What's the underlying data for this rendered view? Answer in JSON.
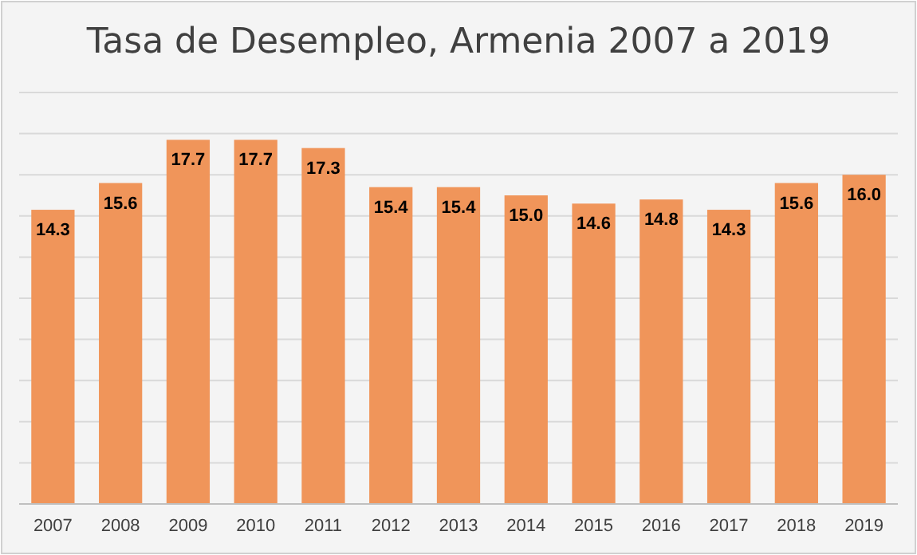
{
  "chart_data": {
    "type": "bar",
    "title": "Tasa de Desempleo, Armenia 2007 a 2019",
    "categories": [
      "2007",
      "2008",
      "2009",
      "2010",
      "2011",
      "2012",
      "2013",
      "2014",
      "2015",
      "2016",
      "2017",
      "2018",
      "2019"
    ],
    "values": [
      14.3,
      15.6,
      17.7,
      17.7,
      17.3,
      15.4,
      15.4,
      15.0,
      14.6,
      14.8,
      14.3,
      15.6,
      16.0
    ],
    "value_labels": [
      "14.3",
      "15.6",
      "17.7",
      "17.7",
      "17.3",
      "15.4",
      "15.4",
      "15.0",
      "14.6",
      "14.8",
      "14.3",
      "15.6",
      "16.0"
    ],
    "color": "#f0955a",
    "grid": "y",
    "tick_labels": "x",
    "ylim": [
      0,
      20
    ],
    "yticks": [
      {
        "value": 0,
        "label": null
      },
      {
        "value": 2,
        "label": null
      },
      {
        "value": 4,
        "label": null
      },
      {
        "value": 6,
        "label": null
      },
      {
        "value": 8,
        "label": null
      },
      {
        "value": 10,
        "label": null
      },
      {
        "value": 12,
        "label": null
      },
      {
        "value": 14,
        "label": null
      },
      {
        "value": 16,
        "label": null
      },
      {
        "value": 18,
        "label": null
      },
      {
        "value": 20,
        "label": null
      }
    ]
  }
}
